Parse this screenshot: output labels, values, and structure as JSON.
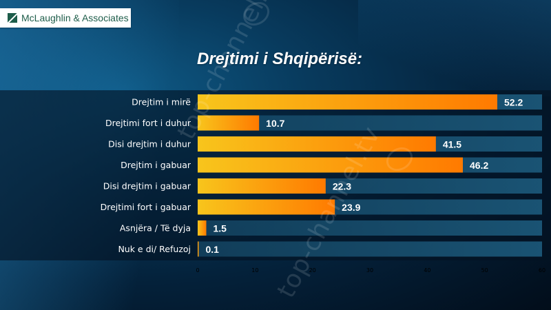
{
  "logo": {
    "text": "McLaughlin & Associates",
    "color": "#1e5d4a"
  },
  "watermark": {
    "text": "top-channel.tv"
  },
  "chart_data": {
    "type": "bar",
    "orientation": "horizontal",
    "title": "Drejtimi i Shqipërisë:",
    "categories": [
      "Drejtim i mirë",
      "Drejtimi fort i duhur",
      "Disi drejtim i duhur",
      "Drejtim i gabuar",
      "Disi drejtim i gabuar",
      "Drejtimi fort i gabuar",
      "Asnjëra / Të dyja",
      "Nuk e di/ Refuzoj"
    ],
    "values": [
      52.2,
      10.7,
      41.5,
      46.2,
      22.3,
      23.9,
      1.5,
      0.1
    ],
    "value_labels": [
      "52.2",
      "10.7",
      "41.5",
      "46.2",
      "22.3",
      "23.9",
      "1.5",
      "0.1"
    ],
    "xlim": [
      0,
      60
    ],
    "xticks": [
      0,
      10,
      20,
      30,
      40,
      50,
      60
    ],
    "xtick_labels": [
      "0",
      "10",
      "20",
      "30",
      "40",
      "50",
      "60"
    ],
    "grid": false,
    "legend": "none",
    "colors": {
      "bar_start": "#f8c51c",
      "bar_end": "#ff7a00",
      "track": "#1c5a7c",
      "text": "#ffffff"
    }
  }
}
